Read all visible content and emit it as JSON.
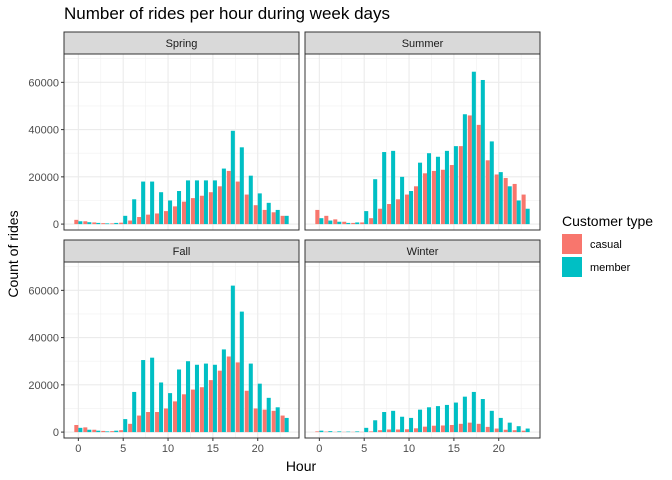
{
  "chart_data": {
    "type": "bar",
    "title": "Number of rides per hour during week days",
    "xlabel": "Hour",
    "ylabel": "Count of rides",
    "xlim": [
      -1.6,
      24.6
    ],
    "ylim": [
      -2500,
      72000
    ],
    "xticks": [
      0,
      5,
      10,
      15,
      20
    ],
    "yticks": [
      0,
      20000,
      40000,
      60000
    ],
    "legend": {
      "title": "Customer type",
      "position": "right",
      "entries": [
        "casual",
        "member"
      ]
    },
    "colors": {
      "casual": "#F8766D",
      "member": "#00BFC4"
    },
    "grid": true,
    "hours": [
      0,
      1,
      2,
      3,
      4,
      5,
      6,
      7,
      8,
      9,
      10,
      11,
      12,
      13,
      14,
      15,
      16,
      17,
      18,
      19,
      20,
      21,
      22,
      23
    ],
    "panels": [
      {
        "name": "Spring",
        "series": [
          {
            "name": "casual",
            "values": [
              1800,
              1200,
              700,
              400,
              300,
              600,
              1500,
              3000,
              4000,
              4500,
              5500,
              7500,
              9500,
              11000,
              12000,
              13500,
              16000,
              22500,
              18000,
              12500,
              8000,
              6000,
              5000,
              3500
            ]
          },
          {
            "name": "member",
            "values": [
              1200,
              800,
              500,
              300,
              500,
              3500,
              10500,
              18000,
              18000,
              13500,
              10000,
              14000,
              18500,
              18500,
              18500,
              18500,
              23500,
              39500,
              32500,
              20500,
              13000,
              9000,
              6000,
              3500
            ]
          }
        ]
      },
      {
        "name": "Summer",
        "series": [
          {
            "name": "casual",
            "values": [
              6000,
              3500,
              2000,
              1000,
              500,
              700,
              2500,
              6500,
              8500,
              10500,
              12500,
              16000,
              21500,
              22500,
              23000,
              25000,
              33000,
              46000,
              42000,
              27000,
              21000,
              19500,
              17000,
              12500
            ]
          },
          {
            "name": "member",
            "values": [
              2500,
              1500,
              1000,
              500,
              700,
              5500,
              19000,
              30500,
              31000,
              20000,
              14000,
              26000,
              30000,
              28500,
              31000,
              33000,
              46500,
              64500,
              61000,
              35000,
              22000,
              16000,
              10000,
              6500
            ]
          }
        ]
      },
      {
        "name": "Fall",
        "series": [
          {
            "name": "casual",
            "values": [
              3000,
              2000,
              1000,
              500,
              400,
              800,
              3500,
              7000,
              8500,
              8500,
              10000,
              13000,
              16000,
              18000,
              19000,
              22000,
              26000,
              32000,
              29500,
              17500,
              10000,
              9500,
              9000,
              7000
            ]
          },
          {
            "name": "member",
            "values": [
              1800,
              1000,
              600,
              300,
              600,
              5500,
              17000,
              30500,
              31500,
              21000,
              16500,
              26500,
              30000,
              28500,
              29000,
              28500,
              35000,
              62000,
              51000,
              29000,
              20500,
              14500,
              10500,
              6000
            ]
          }
        ]
      },
      {
        "name": "Winter",
        "series": [
          {
            "name": "casual",
            "values": [
              300,
              200,
              100,
              100,
              100,
              100,
              300,
              800,
              1100,
              1100,
              1200,
              1600,
              2300,
              2700,
              2800,
              3000,
              3500,
              4000,
              3500,
              2200,
              1500,
              1000,
              800,
              600
            ]
          },
          {
            "name": "member",
            "values": [
              600,
              400,
              300,
              200,
              300,
              1800,
              5000,
              8500,
              9000,
              6500,
              6000,
              9500,
              10500,
              11000,
              11500,
              12500,
              15000,
              17000,
              14000,
              9000,
              6000,
              4000,
              2500,
              1500
            ]
          }
        ]
      }
    ]
  }
}
